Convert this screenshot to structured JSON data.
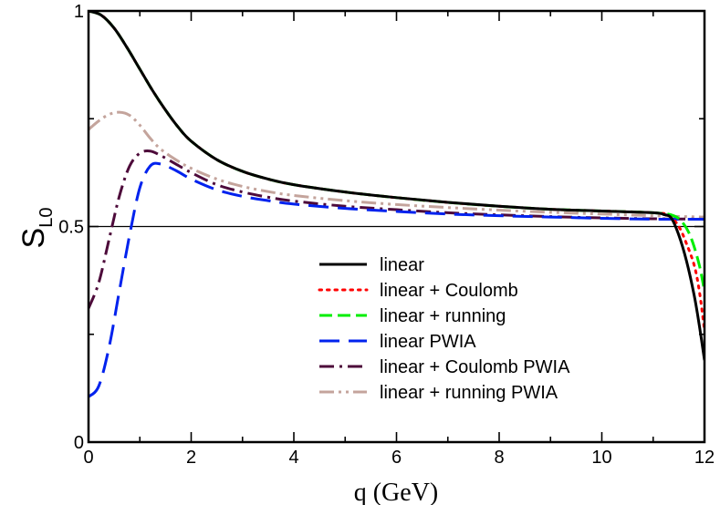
{
  "chart_data": {
    "type": "line",
    "title": "",
    "xlabel": "q (GeV)",
    "ylabel": {
      "main": "S",
      "subscript": "L0"
    },
    "xlim": [
      0,
      12
    ],
    "ylim": [
      0,
      1
    ],
    "x_ticks": [
      0,
      2,
      4,
      6,
      8,
      10,
      12
    ],
    "x_tick_labels": [
      "0",
      "2",
      "4",
      "6",
      "8",
      "10",
      "12"
    ],
    "y_ticks": [
      0,
      0.5,
      1
    ],
    "y_tick_labels": [
      "0",
      "0.5",
      "1"
    ],
    "reference_line": {
      "y": 0.5
    },
    "legend_position": "lower-right",
    "series": [
      {
        "name": "linear",
        "color": "#000000",
        "dash": "solid",
        "x": [
          0,
          0.25,
          0.5,
          0.75,
          1,
          1.25,
          1.5,
          1.75,
          2,
          2.5,
          3,
          3.5,
          4,
          5,
          6,
          7,
          8,
          9,
          10,
          11,
          11.2,
          11.35,
          11.5,
          11.65,
          11.8,
          11.9,
          12
        ],
        "y": [
          1.0,
          0.99,
          0.96,
          0.915,
          0.865,
          0.815,
          0.77,
          0.73,
          0.698,
          0.655,
          0.628,
          0.61,
          0.597,
          0.58,
          0.567,
          0.556,
          0.547,
          0.54,
          0.536,
          0.532,
          0.528,
          0.52,
          0.48,
          0.42,
          0.34,
          0.27,
          0.19
        ]
      },
      {
        "name": "linear + Coulomb",
        "color": "#ff0000",
        "dash": "dotted",
        "x": [
          0,
          0.25,
          0.5,
          0.75,
          1,
          1.25,
          1.5,
          1.75,
          2,
          2.5,
          3,
          3.5,
          4,
          5,
          6,
          7,
          8,
          9,
          10,
          11,
          11.3,
          11.5,
          11.65,
          11.8,
          11.9,
          12
        ],
        "y": [
          1.0,
          0.99,
          0.96,
          0.915,
          0.865,
          0.815,
          0.77,
          0.73,
          0.698,
          0.655,
          0.628,
          0.61,
          0.597,
          0.58,
          0.567,
          0.556,
          0.547,
          0.54,
          0.536,
          0.532,
          0.526,
          0.5,
          0.46,
          0.41,
          0.35,
          0.26
        ]
      },
      {
        "name": "linear + running",
        "color": "#00ee00",
        "dash": "dashed",
        "x": [
          0,
          0.25,
          0.5,
          0.75,
          1,
          1.25,
          1.5,
          1.75,
          2,
          2.5,
          3,
          3.5,
          4,
          5,
          6,
          7,
          8,
          9,
          10,
          11,
          11.4,
          11.6,
          11.75,
          11.9,
          12
        ],
        "y": [
          1.0,
          0.99,
          0.96,
          0.915,
          0.865,
          0.815,
          0.77,
          0.73,
          0.698,
          0.655,
          0.628,
          0.61,
          0.597,
          0.58,
          0.567,
          0.556,
          0.547,
          0.54,
          0.536,
          0.532,
          0.525,
          0.505,
          0.47,
          0.41,
          0.35
        ]
      },
      {
        "name": "linear PWIA",
        "color": "#0022ee",
        "dash": "longdash",
        "x": [
          0,
          0.2,
          0.4,
          0.6,
          0.8,
          1.0,
          1.2,
          1.4,
          1.7,
          2,
          2.5,
          3,
          3.5,
          4,
          5,
          6,
          7,
          8,
          9,
          10,
          11,
          12
        ],
        "y": [
          0.105,
          0.13,
          0.22,
          0.35,
          0.48,
          0.59,
          0.64,
          0.645,
          0.63,
          0.61,
          0.585,
          0.57,
          0.56,
          0.552,
          0.542,
          0.535,
          0.529,
          0.525,
          0.522,
          0.519,
          0.517,
          0.517
        ]
      },
      {
        "name": "linear + Coulomb PWIA",
        "color": "#4d0a3a",
        "dash": "dashdot",
        "x": [
          0,
          0.2,
          0.4,
          0.6,
          0.8,
          1.0,
          1.2,
          1.4,
          1.7,
          2,
          2.5,
          3,
          3.5,
          4,
          5,
          6,
          7,
          8,
          9,
          10,
          11,
          12
        ],
        "y": [
          0.31,
          0.37,
          0.47,
          0.57,
          0.64,
          0.67,
          0.675,
          0.665,
          0.645,
          0.625,
          0.597,
          0.58,
          0.568,
          0.559,
          0.547,
          0.539,
          0.532,
          0.527,
          0.523,
          0.52,
          0.518,
          0.517
        ]
      },
      {
        "name": "linear + running PWIA",
        "color": "#c4a49c",
        "dash": "dashdotdot",
        "x": [
          0,
          0.2,
          0.4,
          0.6,
          0.8,
          1.0,
          1.2,
          1.4,
          1.7,
          2,
          2.5,
          3,
          3.5,
          4,
          5,
          6,
          7,
          8,
          9,
          10,
          11,
          12
        ],
        "y": [
          0.725,
          0.745,
          0.76,
          0.765,
          0.758,
          0.735,
          0.705,
          0.68,
          0.655,
          0.635,
          0.61,
          0.593,
          0.581,
          0.572,
          0.56,
          0.551,
          0.544,
          0.538,
          0.533,
          0.529,
          0.525,
          0.522
        ]
      }
    ]
  }
}
